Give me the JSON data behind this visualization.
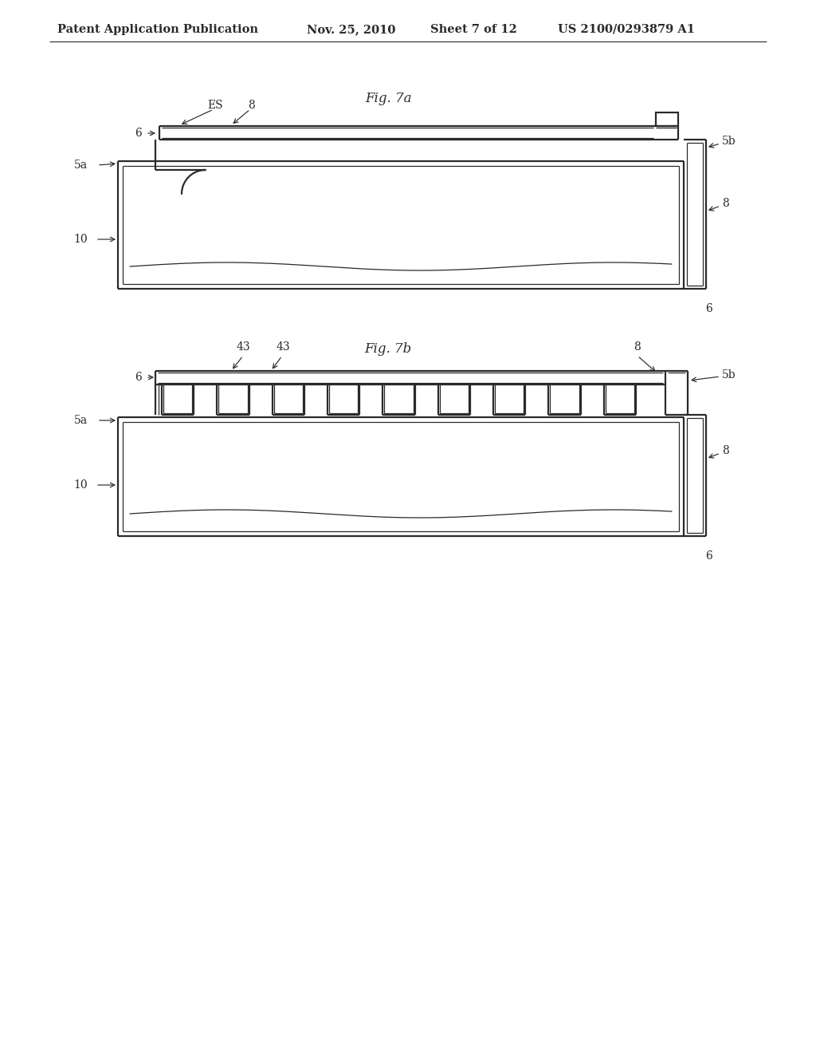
{
  "bg_color": "#ffffff",
  "line_color": "#2a2a2a",
  "header_text": "Patent Application Publication",
  "header_date": "Nov. 25, 2010",
  "header_sheet": "Sheet 7 of 12",
  "header_patent": "US 2100/0293879 A1",
  "fig7a_title": "Fig. 7a",
  "fig7b_title": "Fig. 7b",
  "lw_main": 1.6,
  "lw_thin": 0.9,
  "lw_hair": 0.7
}
